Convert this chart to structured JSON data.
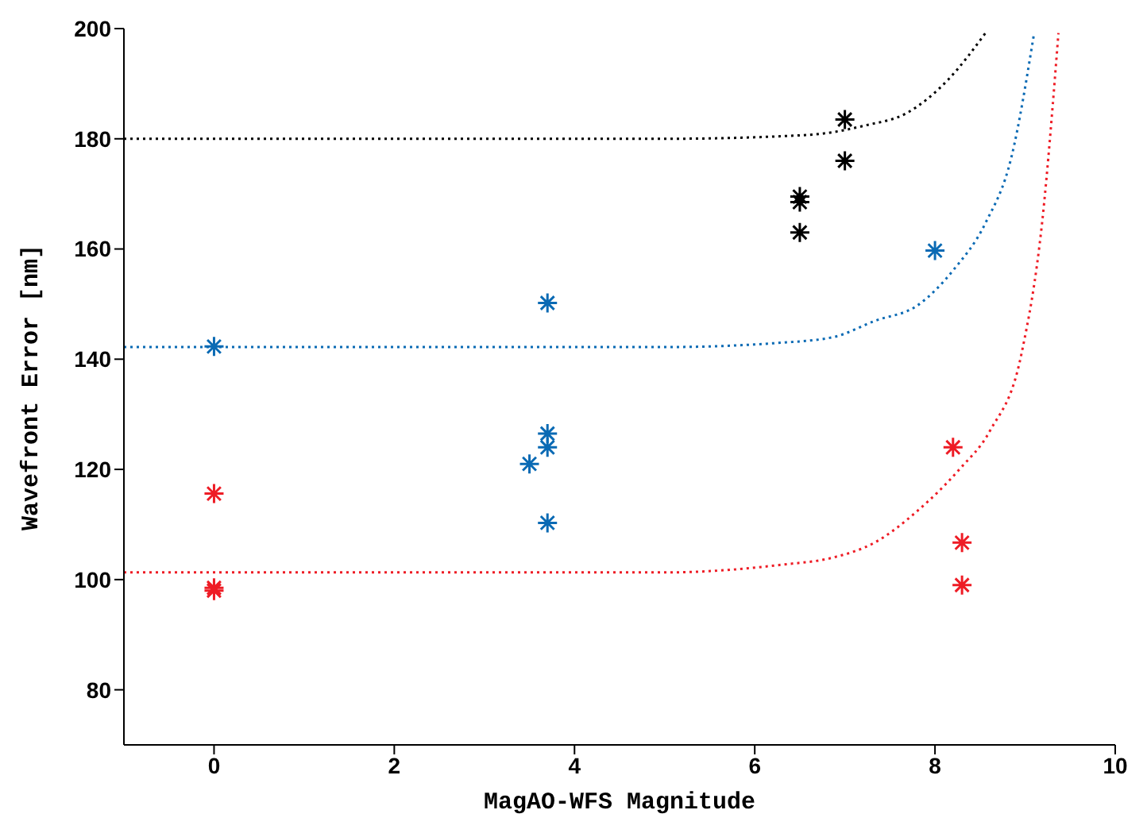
{
  "chart_data": {
    "type": "scatter",
    "xlabel": "MagAO-WFS Magnitude",
    "ylabel": "Wavefront Error [nm]",
    "xlim": [
      -1,
      10
    ],
    "ylim": [
      70,
      200
    ],
    "xticks": [
      0,
      2,
      4,
      6,
      8,
      10
    ],
    "yticks": [
      80,
      100,
      120,
      140,
      160,
      180,
      200
    ],
    "series": [
      {
        "marker": "cross",
        "color": "#ee1c25",
        "x": [
          0,
          0,
          0,
          8.2,
          8.3,
          8.3
        ],
        "values": [
          115.6,
          98.5,
          98,
          124,
          106.7,
          99
        ]
      },
      {
        "marker": "cross",
        "color": "#0a6ab4",
        "x": [
          0,
          3.5,
          3.7,
          3.7,
          3.7,
          3.7,
          8
        ],
        "values": [
          142.3,
          121,
          150.2,
          126.5,
          124,
          110.3,
          159.7
        ]
      },
      {
        "marker": "cross",
        "color": "#000000",
        "x": [
          6.5,
          6.5,
          6.5,
          7,
          7
        ],
        "values": [
          169.5,
          168.5,
          163,
          183.5,
          176
        ]
      },
      {
        "type": "line",
        "line_style": "dotted",
        "color": "#ee1c25",
        "x": [
          -1,
          5,
          6.3,
          6.87,
          7.34,
          7.8,
          8.27,
          8.61,
          8.96,
          9.19,
          9.37
        ],
        "values": [
          101.3,
          101.3,
          102.7,
          104,
          106.8,
          112.4,
          120,
          127,
          141,
          165,
          199.2
        ]
      },
      {
        "type": "line",
        "line_style": "dotted",
        "color": "#0a6ab4",
        "x": [
          -1,
          5,
          6.3,
          6.87,
          7.34,
          7.8,
          8.21,
          8.56,
          8.85,
          9.1
        ],
        "values": [
          142.2,
          142.2,
          143,
          144,
          147,
          149.7,
          156.3,
          164.7,
          176.8,
          199.2
        ]
      },
      {
        "type": "line",
        "line_style": "dotted",
        "color": "#000000",
        "x": [
          -1,
          5,
          6.59,
          7.22,
          7.69,
          8.15,
          8.56
        ],
        "values": [
          180,
          180,
          180.7,
          182.4,
          184.7,
          190.8,
          199.2
        ]
      }
    ]
  }
}
